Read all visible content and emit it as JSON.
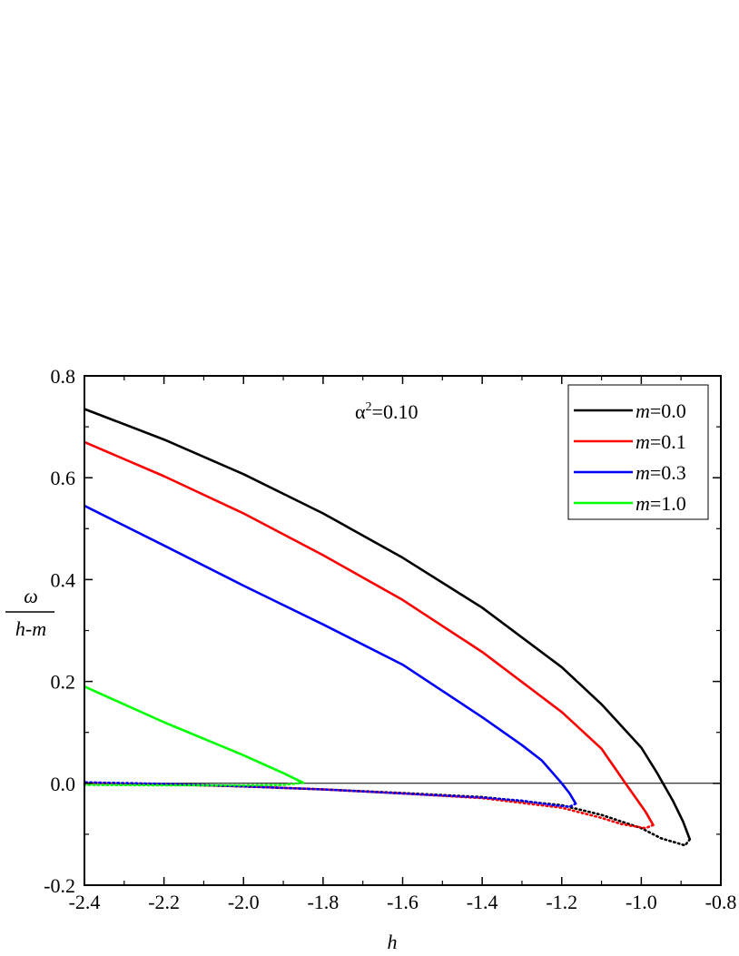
{
  "chart_data": {
    "type": "line",
    "xlabel": "h",
    "ylabel": {
      "numerator": "ω",
      "denominator": "h-m"
    },
    "xlim": [
      -2.4,
      -0.8
    ],
    "ylim": [
      -0.2,
      0.8
    ],
    "x_ticks": [
      "-2.4",
      "-2.2",
      "-2.0",
      "-1.8",
      "-1.6",
      "-1.4",
      "-1.2",
      "-1.0",
      "-0.8"
    ],
    "y_ticks": [
      "-0.2",
      "0.0",
      "0.2",
      "0.4",
      "0.6",
      "0.8"
    ],
    "annotation": {
      "base": "α",
      "sup": "2",
      "rest": "=0.10"
    },
    "reference_line_y": 0.0,
    "legend": {
      "placement": "top-right",
      "entries": [
        {
          "prefix": "m",
          "rest": "=0.0",
          "color": "#000000"
        },
        {
          "prefix": "m",
          "rest": "=0.1",
          "color": "#ff0000"
        },
        {
          "prefix": "m",
          "rest": "=0.3",
          "color": "#0000ff"
        },
        {
          "prefix": "m",
          "rest": "=1.0",
          "color": "#00ff00"
        }
      ]
    },
    "series": [
      {
        "name": "m=0.0",
        "color": "#000000",
        "solid": [
          [
            -2.4,
            0.735
          ],
          [
            -2.2,
            0.675
          ],
          [
            -2.0,
            0.607
          ],
          [
            -1.8,
            0.53
          ],
          [
            -1.6,
            0.443
          ],
          [
            -1.4,
            0.345
          ],
          [
            -1.2,
            0.228
          ],
          [
            -1.1,
            0.155
          ],
          [
            -1.0,
            0.07
          ],
          [
            -0.96,
            0.02
          ],
          [
            -0.92,
            -0.035
          ],
          [
            -0.895,
            -0.075
          ],
          [
            -0.878,
            -0.11
          ]
        ],
        "dotted": [
          [
            -0.878,
            -0.11
          ],
          [
            -0.89,
            -0.122
          ],
          [
            -0.95,
            -0.108
          ],
          [
            -1.0,
            -0.088
          ],
          [
            -1.1,
            -0.062
          ],
          [
            -1.2,
            -0.043
          ],
          [
            -1.4,
            -0.027
          ],
          [
            -1.6,
            -0.019
          ],
          [
            -1.8,
            -0.012
          ],
          [
            -2.0,
            -0.006
          ],
          [
            -2.2,
            -0.002
          ],
          [
            -2.4,
            0.001
          ]
        ]
      },
      {
        "name": "m=0.1",
        "color": "#ff0000",
        "solid": [
          [
            -2.4,
            0.67
          ],
          [
            -2.2,
            0.603
          ],
          [
            -2.0,
            0.53
          ],
          [
            -1.8,
            0.448
          ],
          [
            -1.6,
            0.36
          ],
          [
            -1.4,
            0.258
          ],
          [
            -1.2,
            0.14
          ],
          [
            -1.1,
            0.068
          ],
          [
            -1.04,
            0.0
          ],
          [
            -0.99,
            -0.055
          ],
          [
            -0.97,
            -0.082
          ]
        ],
        "dotted": [
          [
            -0.97,
            -0.082
          ],
          [
            -0.99,
            -0.088
          ],
          [
            -1.05,
            -0.08
          ],
          [
            -1.1,
            -0.068
          ],
          [
            -1.2,
            -0.048
          ],
          [
            -1.4,
            -0.029
          ],
          [
            -1.6,
            -0.02
          ],
          [
            -1.8,
            -0.012
          ],
          [
            -2.0,
            -0.006
          ],
          [
            -2.2,
            -0.002
          ],
          [
            -2.4,
            0.0
          ]
        ]
      },
      {
        "name": "m=0.3",
        "color": "#0000ff",
        "solid": [
          [
            -2.4,
            0.545
          ],
          [
            -2.2,
            0.467
          ],
          [
            -2.0,
            0.388
          ],
          [
            -1.8,
            0.312
          ],
          [
            -1.6,
            0.233
          ],
          [
            -1.4,
            0.13
          ],
          [
            -1.3,
            0.075
          ],
          [
            -1.25,
            0.045
          ],
          [
            -1.2,
            0.0
          ],
          [
            -1.18,
            -0.02
          ],
          [
            -1.165,
            -0.04
          ]
        ],
        "dotted": [
          [
            -1.165,
            -0.04
          ],
          [
            -1.18,
            -0.046
          ],
          [
            -1.22,
            -0.043
          ],
          [
            -1.3,
            -0.034
          ],
          [
            -1.4,
            -0.028
          ],
          [
            -1.6,
            -0.02
          ],
          [
            -1.8,
            -0.012
          ],
          [
            -2.0,
            -0.006
          ],
          [
            -2.2,
            -0.001
          ],
          [
            -2.4,
            0.002
          ]
        ]
      },
      {
        "name": "m=1.0",
        "color": "#00ff00",
        "solid": [
          [
            -2.4,
            0.19
          ],
          [
            -2.2,
            0.12
          ],
          [
            -2.0,
            0.055
          ],
          [
            -1.9,
            0.02
          ],
          [
            -1.85,
            0.001
          ]
        ],
        "dotted": [
          [
            -1.85,
            0.001
          ],
          [
            -1.9,
            -0.003
          ],
          [
            -2.0,
            -0.004
          ],
          [
            -2.2,
            -0.004
          ],
          [
            -2.4,
            -0.003
          ]
        ]
      }
    ]
  }
}
